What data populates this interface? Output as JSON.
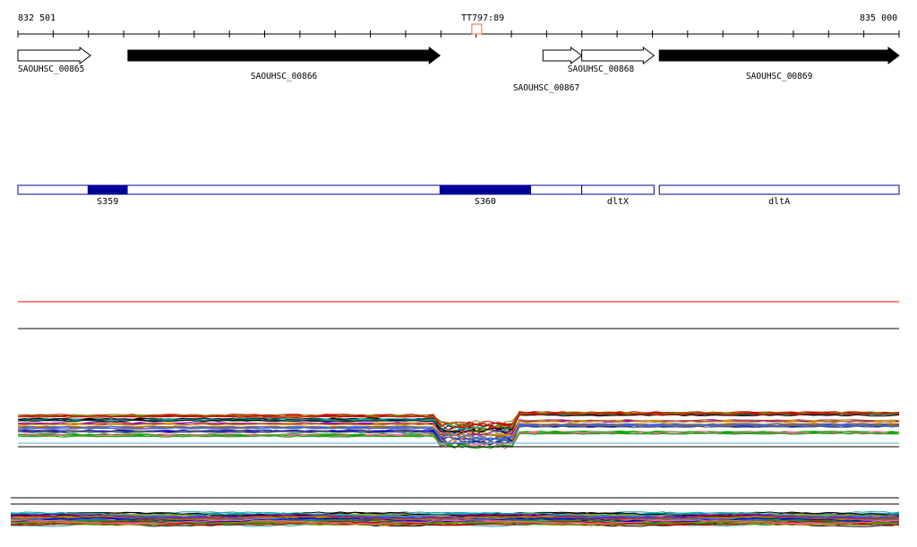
{
  "ruler": {
    "start_label": "832 501",
    "end_label": "835 000",
    "marker_label": "TT797:89",
    "start": 832501,
    "end": 835000,
    "marker_position": 833801
  },
  "genes": [
    {
      "name": "SAOUHSC_00865",
      "start": 832501,
      "end": 832707,
      "strand": "+",
      "filled": false
    },
    {
      "name": "SAOUHSC_00866",
      "start": 832813,
      "end": 833698,
      "strand": "+",
      "filled": true
    },
    {
      "name": "SAOUHSC_00867",
      "start": 833990,
      "end": 834100,
      "strand": "+",
      "filled": false
    },
    {
      "name": "SAOUHSC_00868",
      "start": 834100,
      "end": 834305,
      "strand": "+",
      "filled": false
    },
    {
      "name": "SAOUHSC_00869",
      "start": 834320,
      "end": 835000,
      "strand": "+",
      "filled": true
    }
  ],
  "features": [
    {
      "name": "S359",
      "start": 832700,
      "end": 832811
    },
    {
      "name": "S360",
      "start": 833698,
      "end": 833955
    },
    {
      "name": "dltX",
      "start": 834100,
      "end": 834305,
      "outline_only": true
    },
    {
      "name": "dltA",
      "start": 834320,
      "end": 835000,
      "outline_only": true
    }
  ],
  "colors": {
    "feature_track": "#000099",
    "threshold_line": "#ff0000",
    "gene_fill": "#000000",
    "marker": "#ff6633"
  },
  "expression_track_1": {
    "description_visible": false,
    "baseline_colors": [
      "#000000",
      "#cc0000",
      "#00aa00",
      "#0000cc",
      "#aa6600",
      "#9900aa",
      "#00aaaa",
      "#888800",
      "#ff6699",
      "#666666",
      "#3366ff",
      "#cc9900"
    ]
  }
}
